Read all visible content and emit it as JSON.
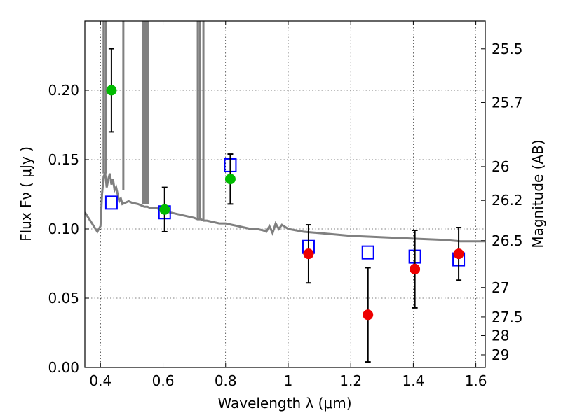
{
  "chart_data": {
    "type": "scatter",
    "title": "",
    "xlabel": "Wavelength  λ (μm)",
    "ylabel": "Flux  Fν ( μJy )",
    "ylabel_right": "Magnitude (AB)",
    "xlim": [
      0.35,
      1.63
    ],
    "ylim": [
      0.0,
      0.25
    ],
    "x_ticks": [
      0.4,
      0.6,
      0.8,
      1.0,
      1.2,
      1.4,
      1.6
    ],
    "x_tick_labels": [
      "0.4",
      "0.6",
      "0.8",
      "1",
      "1.2",
      "1.4",
      "1.6"
    ],
    "y_ticks": [
      0.0,
      0.05,
      0.1,
      0.15,
      0.2
    ],
    "y_tick_labels": [
      "0.00",
      "0.05",
      "0.10",
      "0.15",
      "0.20"
    ],
    "right_ticks": [
      {
        "label": "25.5",
        "flux": 0.2299
      },
      {
        "label": "25.7",
        "flux": 0.1912
      },
      {
        "label": "26",
        "flux": 0.145
      },
      {
        "label": "26.2",
        "flux": 0.1206
      },
      {
        "label": "26.5",
        "flux": 0.0915
      },
      {
        "label": "27",
        "flux": 0.0577
      },
      {
        "label": "27.5",
        "flux": 0.0364
      },
      {
        "label": "28",
        "flux": 0.023
      },
      {
        "label": "29",
        "flux": 0.0091
      }
    ],
    "grid": true,
    "series": [
      {
        "name": "model_sed",
        "kind": "line",
        "color": "#808080",
        "x": [
          0.35,
          0.37,
          0.39,
          0.4,
          0.405,
          0.41,
          0.415,
          0.42,
          0.425,
          0.43,
          0.435,
          0.44,
          0.445,
          0.45,
          0.455,
          0.46,
          0.465,
          0.47,
          0.48,
          0.49,
          0.5,
          0.52,
          0.53,
          0.54,
          0.55,
          0.56,
          0.58,
          0.6,
          0.62,
          0.64,
          0.66,
          0.68,
          0.7,
          0.71,
          0.72,
          0.73,
          0.74,
          0.76,
          0.78,
          0.8,
          0.82,
          0.84,
          0.86,
          0.88,
          0.9,
          0.92,
          0.93,
          0.94,
          0.95,
          0.96,
          0.97,
          0.98,
          1.0,
          1.05,
          1.1,
          1.2,
          1.3,
          1.4,
          1.5,
          1.55,
          1.6,
          1.63
        ],
        "y": [
          0.112,
          0.105,
          0.098,
          0.102,
          0.125,
          0.138,
          0.14,
          0.13,
          0.136,
          0.14,
          0.132,
          0.136,
          0.128,
          0.13,
          0.125,
          0.12,
          0.122,
          0.118,
          0.119,
          0.12,
          0.119,
          0.118,
          0.117,
          0.116,
          0.116,
          0.115,
          0.115,
          0.113,
          0.112,
          0.111,
          0.11,
          0.109,
          0.108,
          0.107,
          0.107,
          0.106,
          0.106,
          0.105,
          0.104,
          0.104,
          0.103,
          0.102,
          0.101,
          0.1,
          0.1,
          0.099,
          0.098,
          0.102,
          0.097,
          0.104,
          0.1,
          0.103,
          0.1,
          0.098,
          0.097,
          0.095,
          0.094,
          0.093,
          0.092,
          0.091,
          0.091,
          0.091
        ]
      },
      {
        "name": "model_sed_emission_lines",
        "kind": "spikes",
        "color": "#808080",
        "x": [
          0.41,
          0.417,
          0.473,
          0.536,
          0.541,
          0.547,
          0.551,
          0.711,
          0.718,
          0.729
        ],
        "y": [
          0.25,
          0.25,
          0.25,
          0.25,
          0.25,
          0.25,
          0.25,
          0.25,
          0.25,
          0.25
        ],
        "base": [
          0.14,
          0.14,
          0.128,
          0.118,
          0.118,
          0.118,
          0.118,
          0.107,
          0.107,
          0.106
        ]
      },
      {
        "name": "model_band_flux",
        "kind": "open_squares",
        "color": "#0000ff",
        "x": [
          0.435,
          0.605,
          0.815,
          1.065,
          1.255,
          1.405,
          1.545
        ],
        "y": [
          0.119,
          0.112,
          0.146,
          0.087,
          0.083,
          0.08,
          0.078
        ]
      },
      {
        "name": "observed_optical",
        "kind": "points_with_errors",
        "color": "#00bb00",
        "x": [
          0.435,
          0.605,
          0.815
        ],
        "y": [
          0.2,
          0.114,
          0.136
        ],
        "yerr": [
          0.03,
          0.016,
          0.018
        ]
      },
      {
        "name": "observed_nir",
        "kind": "points_with_errors",
        "color": "#ee0000",
        "x": [
          1.065,
          1.255,
          1.405,
          1.545
        ],
        "y": [
          0.082,
          0.038,
          0.071,
          0.082
        ],
        "yerr": [
          0.021,
          0.034,
          0.028,
          0.019
        ]
      }
    ]
  }
}
